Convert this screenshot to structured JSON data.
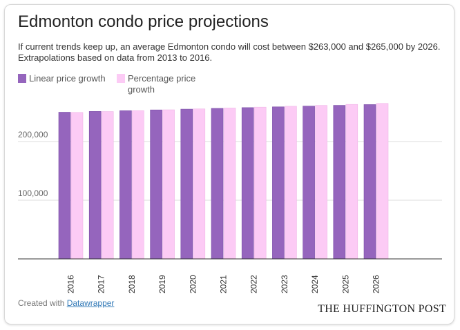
{
  "header": {
    "title": "Edmonton condo price projections",
    "subtitle": "If current trends keep up, an average Edmonton condo will cost between $263,000 and $265,000 by 2026. Extrapolations based on data from 2013 to 2016."
  },
  "legend": [
    {
      "label": "Linear price growth",
      "color": "#9565bd"
    },
    {
      "label": "Percentage price growth",
      "color": "#fccbf5"
    }
  ],
  "footer": {
    "credit_prefix": "Created with",
    "credit_link": "Datawrapper",
    "publisher": "THE HUFFINGTON POST"
  },
  "chart_data": {
    "type": "bar",
    "categories": [
      "2016",
      "2017",
      "2018",
      "2019",
      "2020",
      "2021",
      "2022",
      "2023",
      "2024",
      "2025",
      "2026"
    ],
    "series": [
      {
        "name": "Linear price growth",
        "color": "#9565bd",
        "values": [
          250000,
          251300,
          252600,
          253900,
          255200,
          256500,
          257800,
          259100,
          260400,
          261700,
          263000
        ]
      },
      {
        "name": "Percentage price growth",
        "color": "#fccbf5",
        "values": [
          249600,
          251100,
          252600,
          254100,
          255600,
          257100,
          258600,
          260100,
          261600,
          263300,
          265000
        ]
      }
    ],
    "yticks": [
      {
        "value": 100000,
        "label": "100,000"
      },
      {
        "value": 200000,
        "label": "200,000"
      }
    ],
    "ylim": [
      0,
      275000
    ],
    "xlabel": "",
    "ylabel": "",
    "grid": true,
    "legend_position": "top-left",
    "baseline_color": "#333333",
    "grid_color": "#dddddd"
  }
}
